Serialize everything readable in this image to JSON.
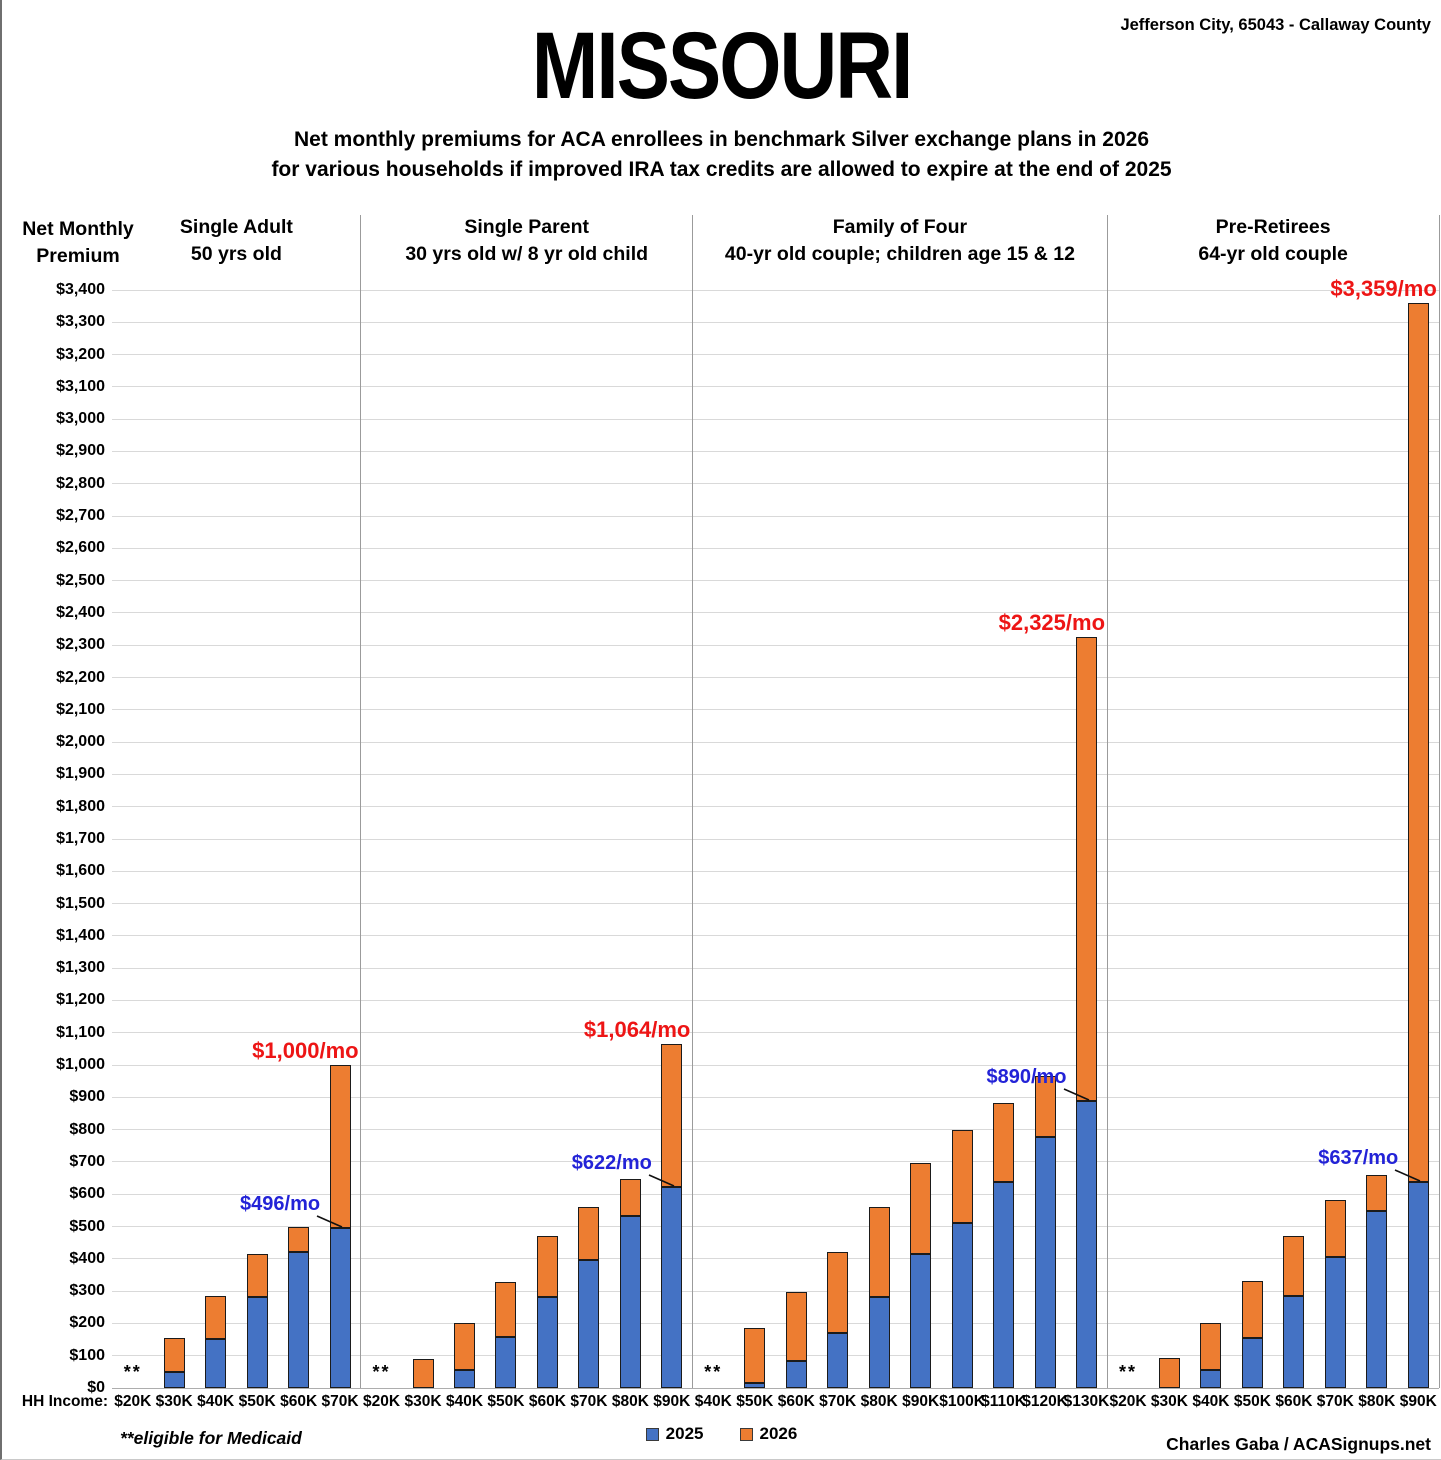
{
  "header": {
    "title": "MISSOURI",
    "location": "Jefferson City, 65043 - Callaway County",
    "subtitle_line1": "Net monthly premiums for ACA enrollees in benchmark Silver exchange plans in 2026",
    "subtitle_line2": "for various households if improved IRA tax credits are allowed to expire at the end of 2025"
  },
  "y_axis_title": {
    "line1": "Net Monthly",
    "line2": "Premium"
  },
  "x_axis_title": "HH Income:",
  "footer": {
    "medicaid_note": "**eligible for Medicaid",
    "credit": "Charles Gaba / ACASignups.net"
  },
  "legend": {
    "items": [
      {
        "label": "2025",
        "color": "#4472C4"
      },
      {
        "label": "2026",
        "color": "#ED7D31"
      }
    ]
  },
  "colors": {
    "bar_2025": "#4472C4",
    "bar_2026": "#ED7D31",
    "bar_border": "#1b1b1b",
    "gridline": "#d9d9d9",
    "axis_line": "#adadad",
    "divider": "#9b9b9b",
    "annotation_2026": "#ED1515",
    "annotation_2025": "#2323D7",
    "leader_line": "#111111"
  },
  "chart_data": {
    "type": "bar",
    "stacked": true,
    "title": "MISSOURI — Net monthly premiums for ACA enrollees in benchmark Silver exchange plans in 2026",
    "ylabel": "Net Monthly Premium",
    "xlabel": "HH Income",
    "ylim": [
      0,
      3400
    ],
    "ytick_step": 100,
    "ytick_prefix": "$",
    "grid": true,
    "legend_position": "bottom",
    "series_names": [
      "2025",
      "2026"
    ],
    "medicaid_marker": "**",
    "note": "Blue segment = 2025 net premium; full bar height = 2026 net premium; ** = eligible for Medicaid",
    "groups": [
      {
        "title_line1": "Single Adult",
        "title_line2": "50 yrs old",
        "bars": [
          {
            "income": "$20K",
            "medicaid": true
          },
          {
            "income": "$30K",
            "premium_2025": 50,
            "premium_2026": 155
          },
          {
            "income": "$40K",
            "premium_2025": 152,
            "premium_2026": 285
          },
          {
            "income": "$50K",
            "premium_2025": 281,
            "premium_2026": 415
          },
          {
            "income": "$60K",
            "premium_2025": 421,
            "premium_2026": 497
          },
          {
            "income": "$70K",
            "premium_2025": 496,
            "premium_2026": 1000,
            "label_2025": "$496/mo",
            "label_2026": "$1,000/mo"
          }
        ]
      },
      {
        "title_line1": "Single Parent",
        "title_line2": "30 yrs old w/ 8 yr old child",
        "bars": [
          {
            "income": "$20K",
            "medicaid": true
          },
          {
            "income": "$30K",
            "premium_2025": 0,
            "premium_2026": 90
          },
          {
            "income": "$40K",
            "premium_2025": 57,
            "premium_2026": 202
          },
          {
            "income": "$50K",
            "premium_2025": 157,
            "premium_2026": 328
          },
          {
            "income": "$60K",
            "premium_2025": 283,
            "premium_2026": 470
          },
          {
            "income": "$70K",
            "premium_2025": 395,
            "premium_2026": 562
          },
          {
            "income": "$80K",
            "premium_2025": 533,
            "premium_2026": 647
          },
          {
            "income": "$90K",
            "premium_2025": 622,
            "premium_2026": 1064,
            "label_2025": "$622/mo",
            "label_2026": "$1,064/mo"
          }
        ]
      },
      {
        "title_line1": "Family of Four",
        "title_line2": "40-yr old couple; children age 15 & 12",
        "bars": [
          {
            "income": "$40K",
            "medicaid": true
          },
          {
            "income": "$50K",
            "premium_2025": 15,
            "premium_2026": 185
          },
          {
            "income": "$60K",
            "premium_2025": 83,
            "premium_2026": 296
          },
          {
            "income": "$70K",
            "premium_2025": 171,
            "premium_2026": 420
          },
          {
            "income": "$80K",
            "premium_2025": 281,
            "premium_2026": 560
          },
          {
            "income": "$90K",
            "premium_2025": 414,
            "premium_2026": 698
          },
          {
            "income": "$100K",
            "premium_2025": 512,
            "premium_2026": 799
          },
          {
            "income": "$110K",
            "premium_2025": 637,
            "premium_2026": 883
          },
          {
            "income": "$120K",
            "premium_2025": 778,
            "premium_2026": 965
          },
          {
            "income": "$130K",
            "premium_2025": 890,
            "premium_2026": 2325,
            "label_2025": "$890/mo",
            "label_2026": "$2,325/mo"
          }
        ]
      },
      {
        "title_line1": "Pre-Retirees",
        "title_line2": "64-yr old couple",
        "bars": [
          {
            "income": "$20K",
            "medicaid": true
          },
          {
            "income": "$30K",
            "premium_2025": 0,
            "premium_2026": 92
          },
          {
            "income": "$40K",
            "premium_2025": 55,
            "premium_2026": 202
          },
          {
            "income": "$50K",
            "premium_2025": 156,
            "premium_2026": 330
          },
          {
            "income": "$60K",
            "premium_2025": 285,
            "premium_2026": 472
          },
          {
            "income": "$70K",
            "premium_2025": 407,
            "premium_2026": 582
          },
          {
            "income": "$80K",
            "premium_2025": 549,
            "premium_2026": 661
          },
          {
            "income": "$90K",
            "premium_2025": 637,
            "premium_2026": 3359,
            "label_2025": "$637/mo",
            "label_2026": "$3,359/mo"
          }
        ]
      }
    ]
  }
}
